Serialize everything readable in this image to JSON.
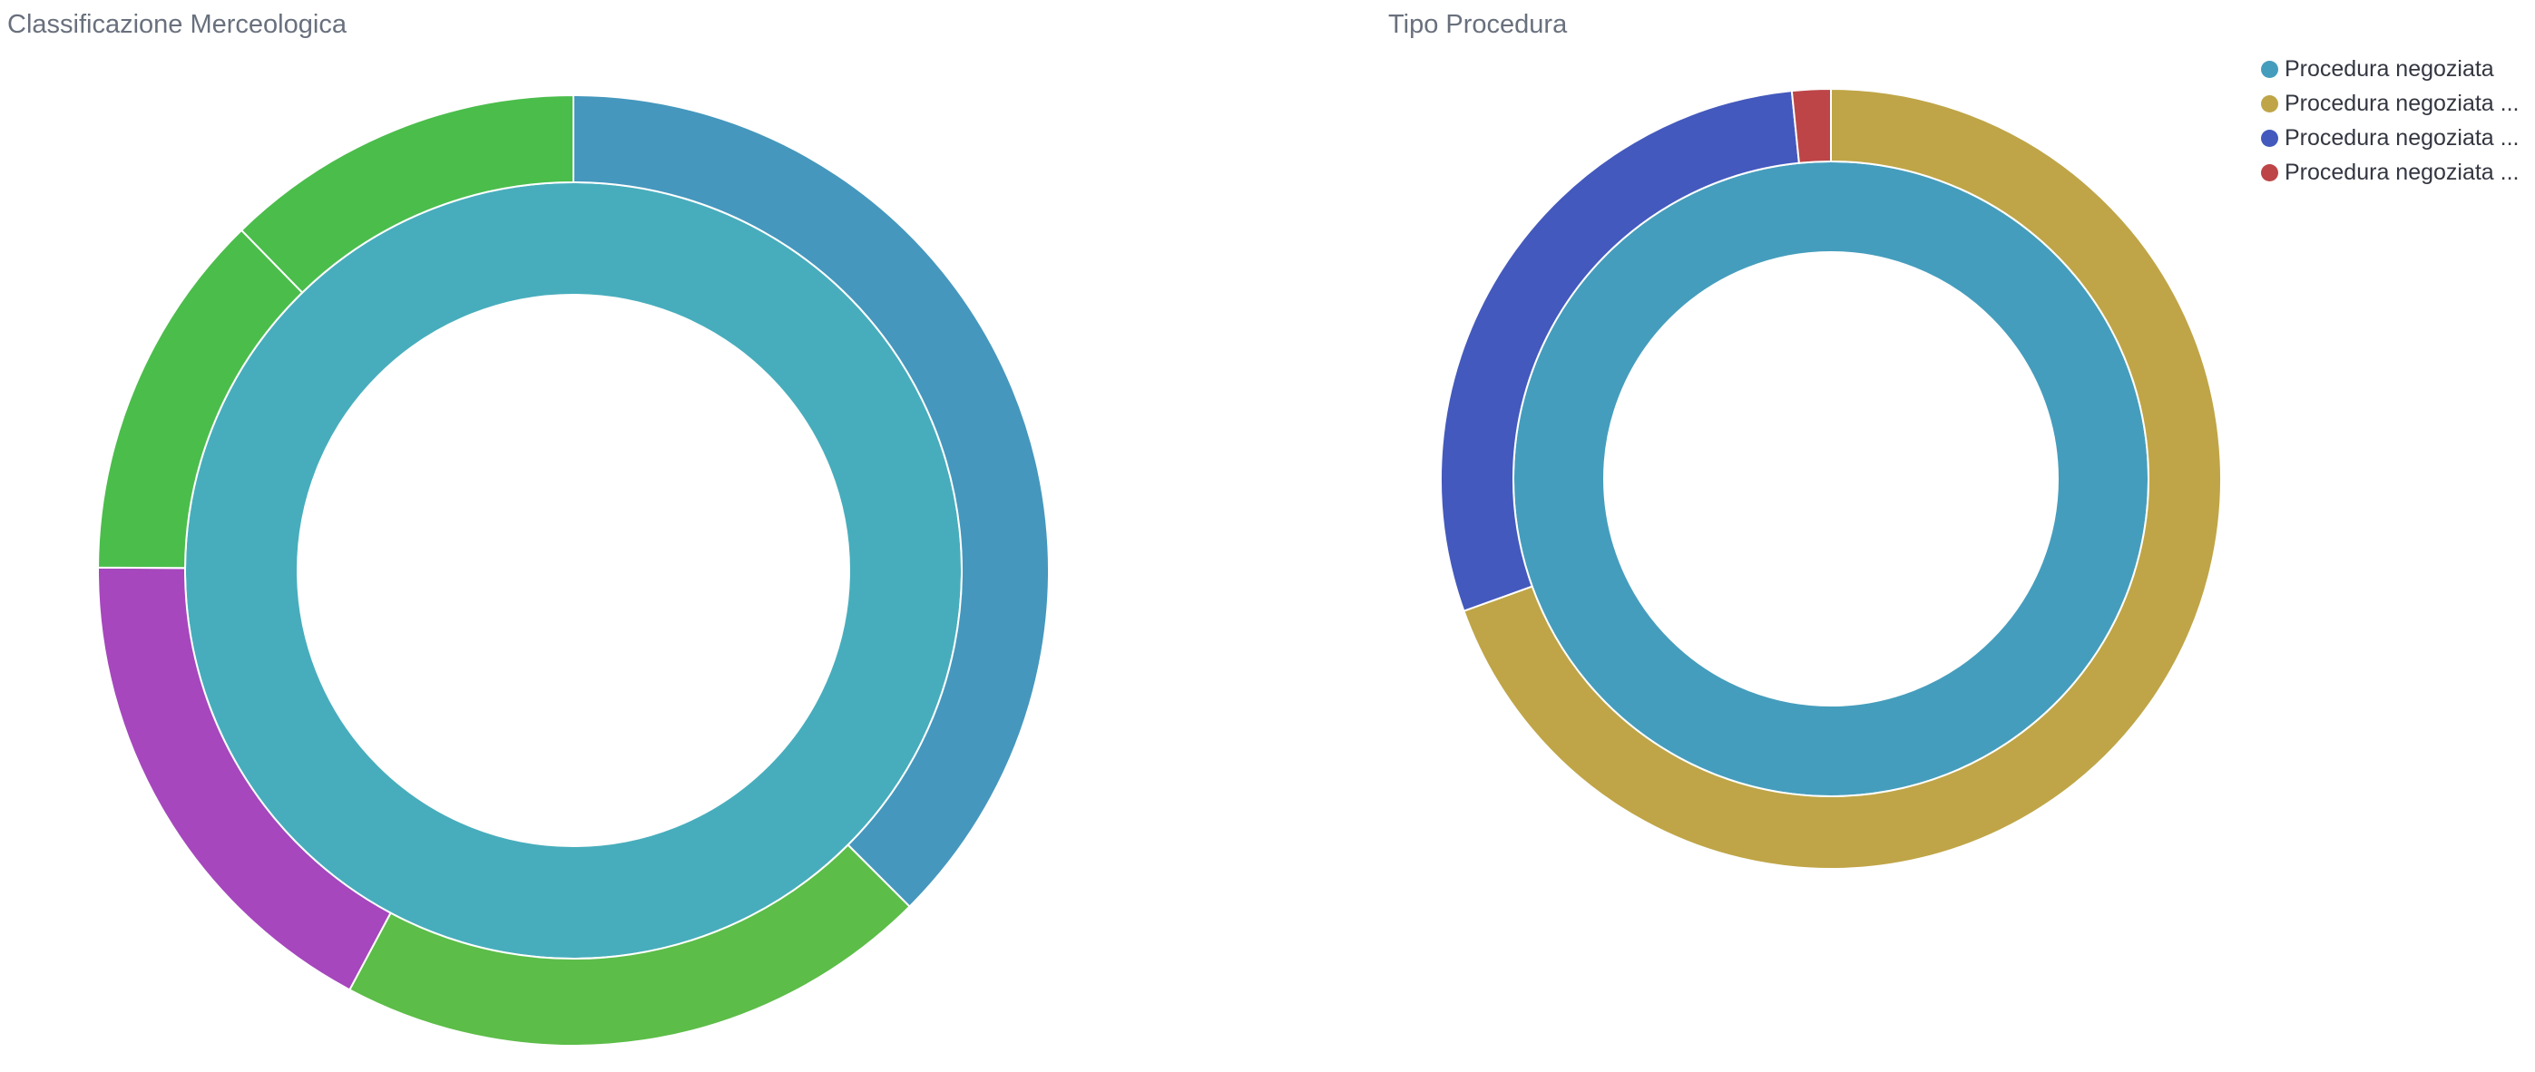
{
  "colors": {
    "title": "#69707d",
    "legend_text": "#343741",
    "separator": "#ffffff"
  },
  "chart_data": [
    {
      "type": "pie",
      "title": "Classificazione Merceologica",
      "layers": [
        {
          "ring": "inner",
          "slices": [
            {
              "value": 100,
              "color": "#47adbc"
            }
          ]
        },
        {
          "ring": "outer",
          "slices": [
            {
              "value": 37.5,
              "color": "#4597bd"
            },
            {
              "value": 20.3,
              "color": "#5cbd48"
            },
            {
              "value": 17.3,
              "color": "#a647bd"
            },
            {
              "value": 12.6,
              "color": "#4bbd4b"
            },
            {
              "value": 12.3,
              "color": "#4bbd4b"
            }
          ]
        }
      ]
    },
    {
      "type": "pie",
      "title": "Tipo Procedura",
      "legend": {
        "position": "top-right",
        "entries": [
          {
            "label": "Procedura negoziata",
            "color": "#459dbd"
          },
          {
            "label": "Procedura negoziata ...",
            "color": "#bfa547"
          },
          {
            "label": "Procedura negoziata ...",
            "color": "#4459bd"
          },
          {
            "label": "Procedura negoziata ...",
            "color": "#bd4547"
          }
        ]
      },
      "layers": [
        {
          "ring": "inner",
          "slices": [
            {
              "value": 100,
              "color": "#459dbd",
              "legend_index": 0
            }
          ]
        },
        {
          "ring": "outer",
          "slices": [
            {
              "value": 69.5,
              "color": "#bfa547",
              "legend_index": 1
            },
            {
              "value": 28.9,
              "color": "#4459bd",
              "legend_index": 2
            },
            {
              "value": 1.6,
              "color": "#bd4547",
              "legend_index": 3
            }
          ]
        }
      ]
    }
  ]
}
